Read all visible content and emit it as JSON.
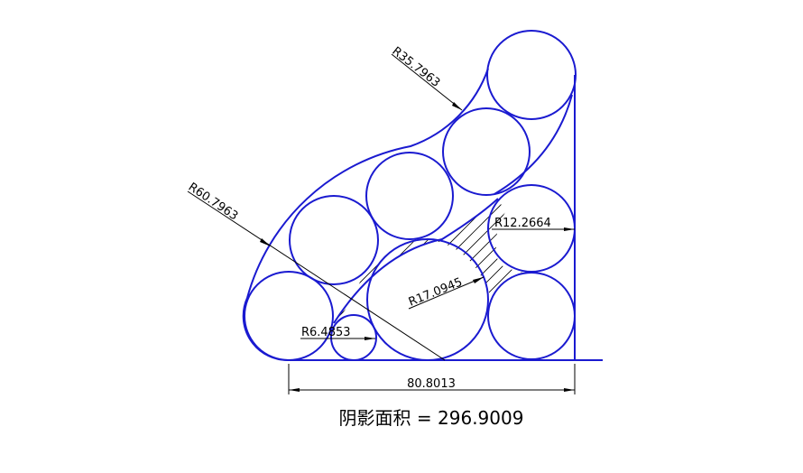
{
  "diagram": {
    "stroke_color": "#1a1ad0",
    "dimensions": {
      "r_outer_small": "R35.7963",
      "r_outer_large": "R60.7963",
      "r_right": "R12.2664",
      "r_big": "R17.0945",
      "r_small": "R6.4853",
      "width": "80.8013"
    },
    "shaded_area_label": "阴影面积 = 296.9009"
  }
}
